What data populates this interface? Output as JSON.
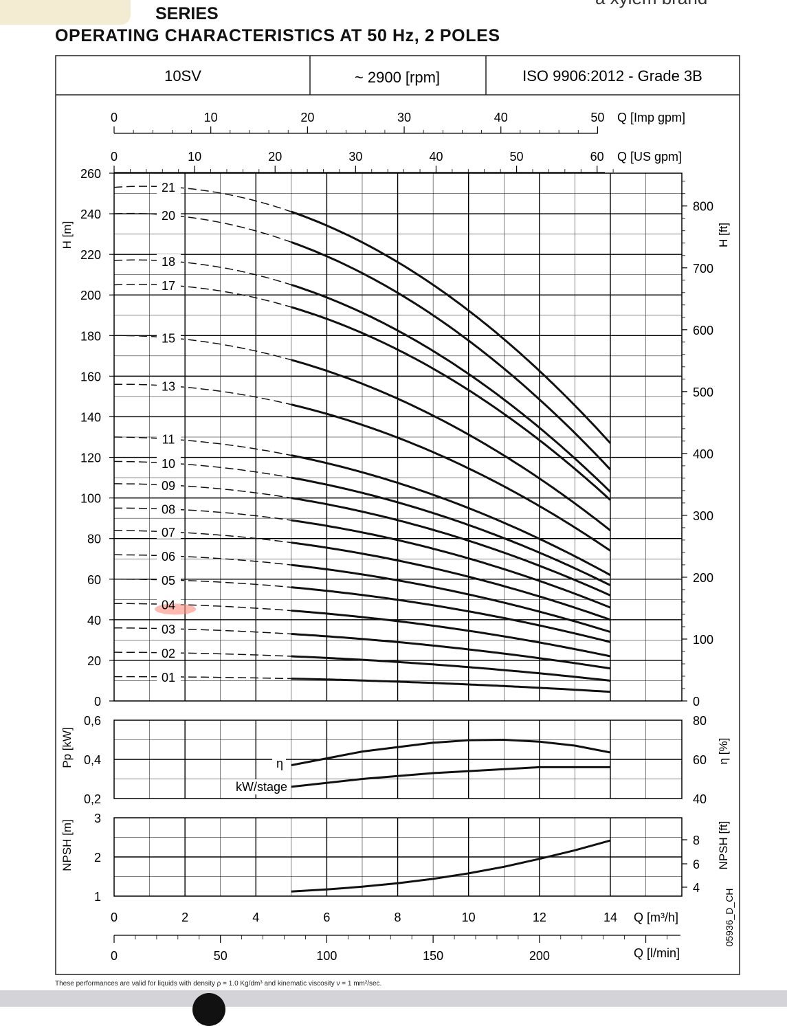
{
  "header": {
    "tab_text": "",
    "series_title": "SERIES",
    "brand": "a xylem brand",
    "title": "OPERATING CHARACTERISTICS AT 50 Hz, 2 POLES"
  },
  "table_header": {
    "model": "10SV",
    "speed": "~ 2900 [rpm]",
    "standard": "ISO 9906:2012 - Grade 3B"
  },
  "footnote": "These performances are valid for liquids with density ρ = 1.0 Kg/dm³ and kinematic viscosity ν = 1 mm²/sec.",
  "code": "05936_D_CH",
  "colors": {
    "curve": "#111111",
    "grid": "#000000",
    "highlight": "#ff8a7a"
  },
  "chart_data": [
    {
      "type": "line",
      "name": "H-Q curves",
      "xlabel": "Q [m³/h]",
      "ylabel": "H [m]",
      "ylabel_right": "H [ft]",
      "xlim": [
        0,
        16
      ],
      "ylim": [
        0,
        260
      ],
      "x_ticks": [
        "0",
        "2",
        "4",
        "6",
        "8",
        "10",
        "12",
        "14"
      ],
      "y_ticks": [
        "0",
        "20",
        "40",
        "60",
        "80",
        "100",
        "120",
        "140",
        "160",
        "180",
        "200",
        "220",
        "240",
        "260"
      ],
      "y_right_ticks": [
        "0",
        "100",
        "200",
        "300",
        "400",
        "500",
        "600",
        "700",
        "800"
      ],
      "aux_axes": [
        {
          "label": "Q [Imp gpm]",
          "ticks": [
            "0",
            "10",
            "20",
            "30",
            "40",
            "50"
          ]
        },
        {
          "label": "Q [US gpm]",
          "ticks": [
            "0",
            "10",
            "20",
            "30",
            "40",
            "50",
            "60"
          ]
        },
        {
          "label": "Q [l/min]",
          "ticks": [
            "0",
            "50",
            "100",
            "150",
            "200"
          ]
        }
      ],
      "operating_range": [
        5,
        14
      ],
      "highlighted": "04",
      "series": [
        {
          "name": "21",
          "h0": 253,
          "h5": 241,
          "h14": 127
        },
        {
          "name": "20",
          "h0": 240,
          "h5": 226,
          "h14": 114
        },
        {
          "name": "18",
          "h0": 217,
          "h5": 205,
          "h14": 103
        },
        {
          "name": "17",
          "h0": 205,
          "h5": 194,
          "h14": 99
        },
        {
          "name": "15",
          "h0": 180,
          "h5": 168,
          "h14": 84
        },
        {
          "name": "13",
          "h0": 156,
          "h5": 146,
          "h14": 74
        },
        {
          "name": "11",
          "h0": 130,
          "h5": 121,
          "h14": 62
        },
        {
          "name": "10",
          "h0": 118,
          "h5": 110,
          "h14": 57
        },
        {
          "name": "09",
          "h0": 107,
          "h5": 100,
          "h14": 52
        },
        {
          "name": "08",
          "h0": 95,
          "h5": 89,
          "h14": 46
        },
        {
          "name": "07",
          "h0": 84,
          "h5": 78,
          "h14": 40
        },
        {
          "name": "06",
          "h0": 72,
          "h5": 67,
          "h14": 34
        },
        {
          "name": "05",
          "h0": 60,
          "h5": 56,
          "h14": 29
        },
        {
          "name": "04",
          "h0": 48,
          "h5": 44.5,
          "h14": 22
        },
        {
          "name": "03",
          "h0": 36,
          "h5": 33,
          "h14": 16
        },
        {
          "name": "02",
          "h0": 24,
          "h5": 22,
          "h14": 10
        },
        {
          "name": "01",
          "h0": 12,
          "h5": 11,
          "h14": 4.5
        }
      ]
    },
    {
      "type": "line",
      "name": "Power and efficiency",
      "ylabel": "Pp [kW]",
      "ylabel_right": "η [%]",
      "ylim": [
        0.2,
        0.6
      ],
      "y_ticks": [
        "0,6",
        "0,4",
        "0,2"
      ],
      "y_right_ticks": [
        "80",
        "60",
        "40"
      ],
      "series": [
        {
          "name": "η",
          "x": [
            5,
            7,
            9,
            10,
            11,
            12,
            13,
            14
          ],
          "y": [
            57,
            64,
            68.5,
            69.8,
            70,
            69,
            67,
            63.5
          ]
        },
        {
          "name": "kW/stage",
          "x": [
            5,
            7,
            9,
            11,
            12,
            13,
            14
          ],
          "y": [
            0.26,
            0.3,
            0.33,
            0.35,
            0.36,
            0.36,
            0.36
          ]
        }
      ]
    },
    {
      "type": "line",
      "name": "NPSH",
      "ylabel": "NPSH [m]",
      "ylabel_right": "NPSH [ft]",
      "ylim": [
        1,
        3
      ],
      "y_ticks": [
        "3",
        "2",
        "1"
      ],
      "y_right_ticks": [
        "8",
        "6",
        "4"
      ],
      "series": [
        {
          "name": "NPSH",
          "x": [
            5,
            6,
            7,
            8,
            9,
            10,
            11,
            12,
            13,
            14
          ],
          "y": [
            1.12,
            1.17,
            1.24,
            1.33,
            1.44,
            1.58,
            1.75,
            1.95,
            2.17,
            2.42
          ]
        }
      ]
    }
  ]
}
